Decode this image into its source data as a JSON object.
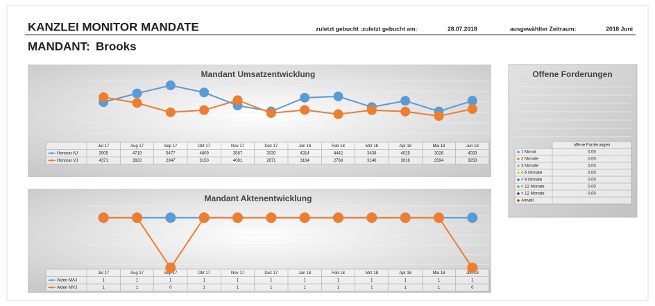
{
  "header": {
    "title": "KANZLEI MONITOR MANDATE",
    "booked_label": "zuletzt gebucht :zuletzt gebucht am:",
    "booked_date": "28.07.2018",
    "period_label": "ausgewählter Zeitraum:",
    "period": "2018 Juni",
    "client_label": "MANDANT:",
    "client": "Brooks"
  },
  "chart_data": [
    {
      "type": "line",
      "title": "Mandant Umsatzentwicklung",
      "categories": [
        "Jul 17",
        "Aug 17",
        "Sep 17",
        "Okt 17",
        "Nov 17",
        "Dez 17",
        "Jan 18",
        "Feb 18",
        "Mrz 18",
        "Apr 18",
        "Mai 18",
        "Jun 18"
      ],
      "ylim": [
        0,
        6000
      ],
      "series": [
        {
          "name": "Honorar AJ",
          "color": "#5b9bd5",
          "values": [
            3905,
            4719,
            5477,
            4809,
            3587,
            3030,
            4314,
            4442,
            3438,
            4025,
            3026,
            4033
          ]
        },
        {
          "name": "Honorar VJ",
          "color": "#ed7d31",
          "values": [
            4371,
            3822,
            2947,
            3150,
            4081,
            2871,
            3164,
            2768,
            3146,
            3016,
            2594,
            3253
          ]
        }
      ]
    },
    {
      "type": "line",
      "title": "Mandant Aktenentwicklung",
      "categories": [
        "Jul 17",
        "Aug 17",
        "Sep 17",
        "Okt 17",
        "Nov 17",
        "Dez 17",
        "Jan 18",
        "Feb 18",
        "Mrz 18",
        "Apr 18",
        "Mai 18",
        "Jun 18"
      ],
      "ylim": [
        0,
        1.3
      ],
      "series": [
        {
          "name": "Akten MAJ",
          "color": "#5b9bd5",
          "values": [
            1,
            1,
            1,
            1,
            1,
            1,
            1,
            1,
            1,
            1,
            1,
            1
          ]
        },
        {
          "name": "Akten MVJ",
          "color": "#ed7d31",
          "values": [
            1,
            1,
            0,
            1,
            1,
            1,
            1,
            1,
            1,
            1,
            1,
            0
          ]
        }
      ]
    }
  ],
  "receivables": {
    "title": "Offene Forderungen",
    "column": "offene Forderungen",
    "rows": [
      {
        "label": "1 Monat",
        "color": "#5b9bd5",
        "value": "0,00"
      },
      {
        "label": "2 Monate",
        "color": "#ed7d31",
        "value": "0,00"
      },
      {
        "label": "3 Monate",
        "color": "#a5a5a5",
        "value": "0,00"
      },
      {
        "label": "< 6 Monate",
        "color": "#ffc000",
        "value": "0,00"
      },
      {
        "label": "< 9 Monate",
        "color": "#4472c4",
        "value": "0,00"
      },
      {
        "label": "< 12 Monate",
        "color": "#70ad47",
        "value": "0,00"
      },
      {
        "label": "> 12 Monate",
        "color": "#264478",
        "value": "0,00"
      },
      {
        "label": "Anwalt",
        "color": "#9e480e"
      }
    ]
  }
}
